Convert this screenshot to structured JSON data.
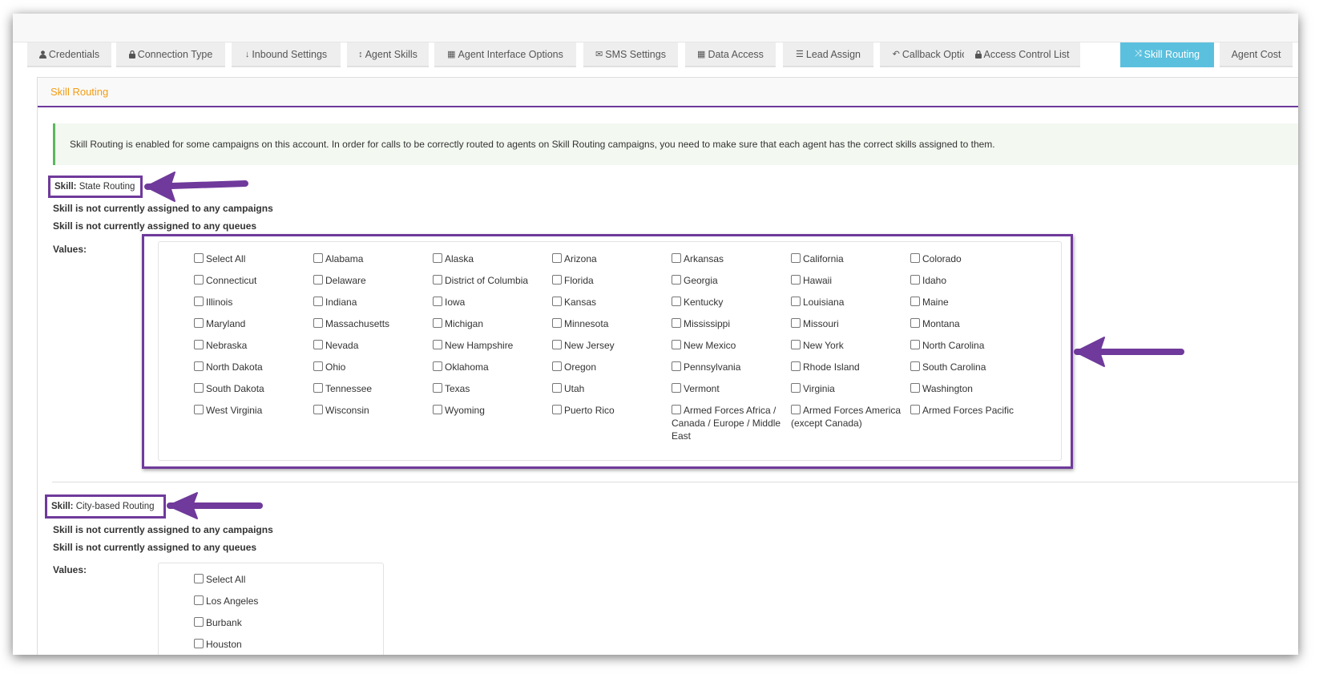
{
  "tabs": [
    {
      "label": "Credentials",
      "icon": "user-icon"
    },
    {
      "label": "Connection Type",
      "icon": "lock-icon"
    },
    {
      "label": "Inbound Settings",
      "icon": "arrow-down-icon"
    },
    {
      "label": "Agent Skills",
      "icon": "arrows-vertical-icon"
    },
    {
      "label": "Agent Interface Options",
      "icon": "grid-icon"
    },
    {
      "label": "SMS Settings",
      "icon": "envelope-icon"
    },
    {
      "label": "Data Access",
      "icon": "grid-icon"
    },
    {
      "label": "Lead Assign",
      "icon": "list-icon"
    },
    {
      "label": "Callback Options",
      "icon": "reply-icon"
    },
    {
      "label": "Access Control List",
      "icon": "lock-icon"
    },
    {
      "label": "Skill Routing",
      "icon": "shuffle-icon",
      "active": true
    },
    {
      "label": "Agent Cost",
      "icon": ""
    }
  ],
  "panel": {
    "title": "Skill Routing"
  },
  "alert": "Skill Routing is enabled for some campaigns on this account. In order for calls to be correctly routed to agents on Skill Routing campaigns, you need to make sure that each agent has the correct skills assigned to them.",
  "skills": [
    {
      "prefix": "Skill:",
      "name": "State Routing",
      "campaigns": "Skill is not currently assigned to any campaigns",
      "queues": "Skill is not currently assigned to any queues",
      "values_label": "Values:",
      "values": [
        "Select All",
        "Alabama",
        "Alaska",
        "Arizona",
        "Arkansas",
        "California",
        "Colorado",
        "Connecticut",
        "Delaware",
        "District of Columbia",
        "Florida",
        "Georgia",
        "Hawaii",
        "Idaho",
        "Illinois",
        "Indiana",
        "Iowa",
        "Kansas",
        "Kentucky",
        "Louisiana",
        "Maine",
        "Maryland",
        "Massachusetts",
        "Michigan",
        "Minnesota",
        "Mississippi",
        "Missouri",
        "Montana",
        "Nebraska",
        "Nevada",
        "New Hampshire",
        "New Jersey",
        "New Mexico",
        "New York",
        "North Carolina",
        "North Dakota",
        "Ohio",
        "Oklahoma",
        "Oregon",
        "Pennsylvania",
        "Rhode Island",
        "South Carolina",
        "South Dakota",
        "Tennessee",
        "Texas",
        "Utah",
        "Vermont",
        "Virginia",
        "Washington",
        "West Virginia",
        "Wisconsin",
        "Wyoming",
        "Puerto Rico",
        "Armed Forces Africa / Canada / Europe / Middle East",
        "Armed Forces America (except Canada)",
        "Armed Forces Pacific"
      ]
    },
    {
      "prefix": "Skill:",
      "name": "City-based Routing",
      "campaigns": "Skill is not currently assigned to any campaigns",
      "queues": "Skill is not currently assigned to any queues",
      "values_label": "Values:",
      "values": [
        "Select All",
        "Los Angeles",
        "Burbank",
        "Houston"
      ]
    }
  ],
  "colors": {
    "accent": "#6f3a9b",
    "active_tab": "#5bc0de",
    "title": "#f39c12",
    "alert_border": "#5cb85c"
  }
}
